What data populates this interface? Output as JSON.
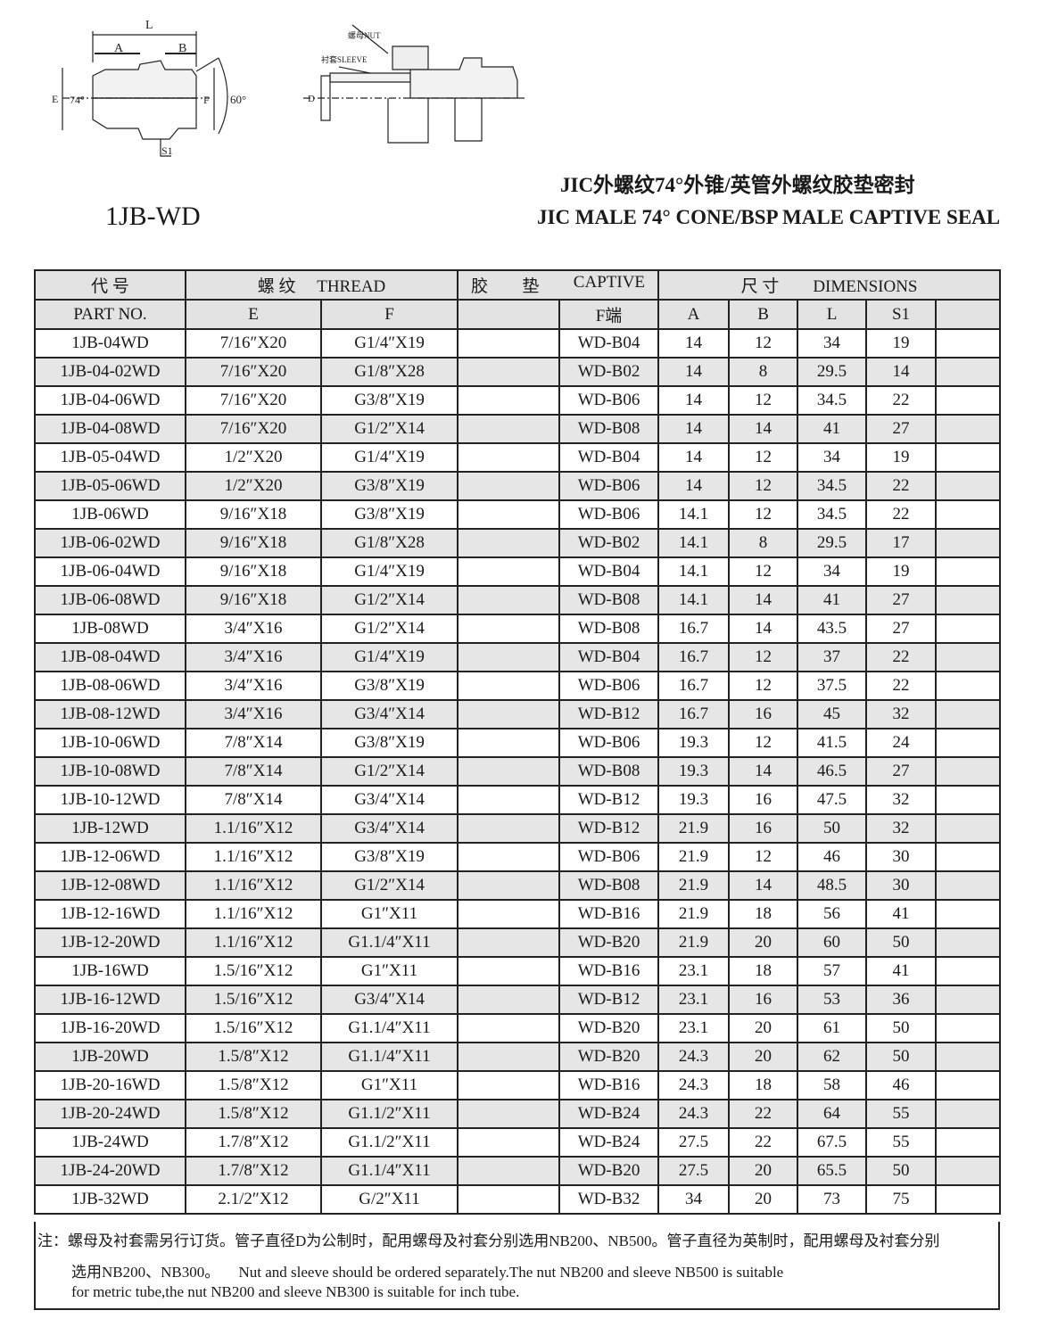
{
  "drawing": {
    "left": {
      "L": "L",
      "A": "A",
      "B": "B",
      "E": "E",
      "F": "F",
      "angle_cone": "74°",
      "angle_thread": "60°",
      "S1": "S1"
    },
    "right": {
      "nut": "螺母NUT",
      "sleeve": "衬套SLEEVE",
      "D": "D"
    }
  },
  "model": "1JB-WD",
  "title_cn": "JIC外螺纹74°外锥/英管外螺纹胶垫密封",
  "title_en": "JIC MALE 74° CONE/BSP MALE CAPTIVE SEAL",
  "header": {
    "code_cn": "代  号",
    "thread_cn": "螺  纹",
    "thread_en": "THREAD",
    "captive_cn1": "胶",
    "captive_cn2": "垫",
    "captive_en": "CAPTIVE",
    "dim_cn": "尺  寸",
    "dim_en": "DIMENSIONS",
    "part_no": "PART  NO.",
    "E": "E",
    "F": "F",
    "F_end": "F端",
    "A": "A",
    "B": "B",
    "L": "L",
    "S1": "S1"
  },
  "rows": [
    [
      "1JB-04WD",
      "7/16″X20",
      "G1/4″X19",
      "WD-B04",
      "14",
      "12",
      "34",
      "19"
    ],
    [
      "1JB-04-02WD",
      "7/16″X20",
      "G1/8″X28",
      "WD-B02",
      "14",
      "8",
      "29.5",
      "14"
    ],
    [
      "1JB-04-06WD",
      "7/16″X20",
      "G3/8″X19",
      "WD-B06",
      "14",
      "12",
      "34.5",
      "22"
    ],
    [
      "1JB-04-08WD",
      "7/16″X20",
      "G1/2″X14",
      "WD-B08",
      "14",
      "14",
      "41",
      "27"
    ],
    [
      "1JB-05-04WD",
      "1/2″X20",
      "G1/4″X19",
      "WD-B04",
      "14",
      "12",
      "34",
      "19"
    ],
    [
      "1JB-05-06WD",
      "1/2″X20",
      "G3/8″X19",
      "WD-B06",
      "14",
      "12",
      "34.5",
      "22"
    ],
    [
      "1JB-06WD",
      "9/16″X18",
      "G3/8″X19",
      "WD-B06",
      "14.1",
      "12",
      "34.5",
      "22"
    ],
    [
      "1JB-06-02WD",
      "9/16″X18",
      "G1/8″X28",
      "WD-B02",
      "14.1",
      "8",
      "29.5",
      "17"
    ],
    [
      "1JB-06-04WD",
      "9/16″X18",
      "G1/4″X19",
      "WD-B04",
      "14.1",
      "12",
      "34",
      "19"
    ],
    [
      "1JB-06-08WD",
      "9/16″X18",
      "G1/2″X14",
      "WD-B08",
      "14.1",
      "14",
      "41",
      "27"
    ],
    [
      "1JB-08WD",
      "3/4″X16",
      "G1/2″X14",
      "WD-B08",
      "16.7",
      "14",
      "43.5",
      "27"
    ],
    [
      "1JB-08-04WD",
      "3/4″X16",
      "G1/4″X19",
      "WD-B04",
      "16.7",
      "12",
      "37",
      "22"
    ],
    [
      "1JB-08-06WD",
      "3/4″X16",
      "G3/8″X19",
      "WD-B06",
      "16.7",
      "12",
      "37.5",
      "22"
    ],
    [
      "1JB-08-12WD",
      "3/4″X16",
      "G3/4″X14",
      "WD-B12",
      "16.7",
      "16",
      "45",
      "32"
    ],
    [
      "1JB-10-06WD",
      "7/8″X14",
      "G3/8″X19",
      "WD-B06",
      "19.3",
      "12",
      "41.5",
      "24"
    ],
    [
      "1JB-10-08WD",
      "7/8″X14",
      "G1/2″X14",
      "WD-B08",
      "19.3",
      "14",
      "46.5",
      "27"
    ],
    [
      "1JB-10-12WD",
      "7/8″X14",
      "G3/4″X14",
      "WD-B12",
      "19.3",
      "16",
      "47.5",
      "32"
    ],
    [
      "1JB-12WD",
      "1.1/16″X12",
      "G3/4″X14",
      "WD-B12",
      "21.9",
      "16",
      "50",
      "32"
    ],
    [
      "1JB-12-06WD",
      "1.1/16″X12",
      "G3/8″X19",
      "WD-B06",
      "21.9",
      "12",
      "46",
      "30"
    ],
    [
      "1JB-12-08WD",
      "1.1/16″X12",
      "G1/2″X14",
      "WD-B08",
      "21.9",
      "14",
      "48.5",
      "30"
    ],
    [
      "1JB-12-16WD",
      "1.1/16″X12",
      "G1″X11",
      "WD-B16",
      "21.9",
      "18",
      "56",
      "41"
    ],
    [
      "1JB-12-20WD",
      "1.1/16″X12",
      "G1.1/4″X11",
      "WD-B20",
      "21.9",
      "20",
      "60",
      "50"
    ],
    [
      "1JB-16WD",
      "1.5/16″X12",
      "G1″X11",
      "WD-B16",
      "23.1",
      "18",
      "57",
      "41"
    ],
    [
      "1JB-16-12WD",
      "1.5/16″X12",
      "G3/4″X14",
      "WD-B12",
      "23.1",
      "16",
      "53",
      "36"
    ],
    [
      "1JB-16-20WD",
      "1.5/16″X12",
      "G1.1/4″X11",
      "WD-B20",
      "23.1",
      "20",
      "61",
      "50"
    ],
    [
      "1JB-20WD",
      "1.5/8″X12",
      "G1.1/4″X11",
      "WD-B20",
      "24.3",
      "20",
      "62",
      "50"
    ],
    [
      "1JB-20-16WD",
      "1.5/8″X12",
      "G1″X11",
      "WD-B16",
      "24.3",
      "18",
      "58",
      "46"
    ],
    [
      "1JB-20-24WD",
      "1.5/8″X12",
      "G1.1/2″X11",
      "WD-B24",
      "24.3",
      "22",
      "64",
      "55"
    ],
    [
      "1JB-24WD",
      "1.7/8″X12",
      "G1.1/2″X11",
      "WD-B24",
      "27.5",
      "22",
      "67.5",
      "55"
    ],
    [
      "1JB-24-20WD",
      "1.7/8″X12",
      "G1.1/4″X11",
      "WD-B20",
      "27.5",
      "20",
      "65.5",
      "50"
    ],
    [
      "1JB-32WD",
      "2.1/2″X12",
      "G/2″X11",
      "WD-B32",
      "34",
      "20",
      "73",
      "75"
    ]
  ],
  "notes": {
    "line1": "注：螺母及衬套需另行订货。管子直径D为公制时，配用螺母及衬套分别选用NB200、NB500。管子直径为英制时，配用螺母及衬套分别",
    "line2": "选用NB200、NB300。     Nut and sleeve should be ordered separately.The nut NB200 and sleeve NB500 is suitable",
    "line3": "for metric tube,the nut NB200 and sleeve NB300 is suitable for inch tube."
  }
}
